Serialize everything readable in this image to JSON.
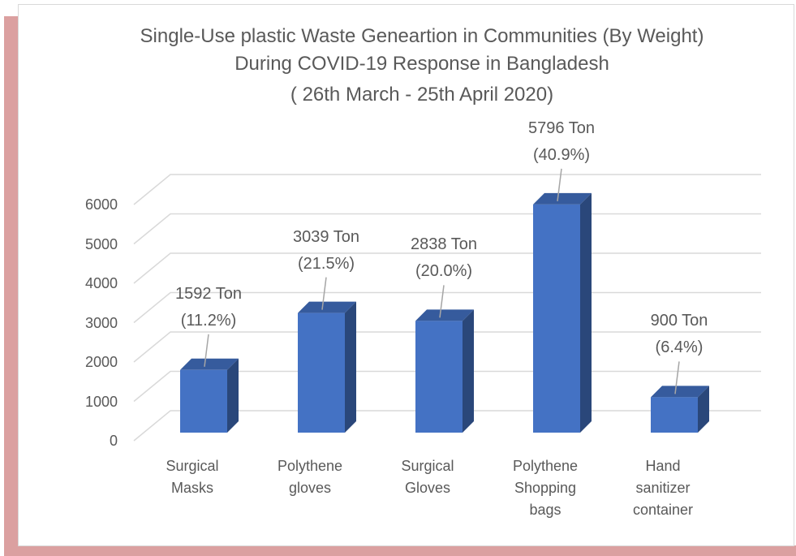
{
  "chart_data": {
    "type": "bar3d",
    "title": "Single-Use plastic Waste Geneartion in Communities (By Weight)  During COVID-19 Response in Bangladesh",
    "subtitle": "( 26th March - 25th April 2020)",
    "categories": [
      "Surgical Masks",
      "Polythene gloves",
      "Surgical Gloves",
      "Polythene Shopping bags",
      "Hand sanitizer container"
    ],
    "values": [
      1592,
      3039,
      2838,
      5796,
      900
    ],
    "value_labels": [
      "1592 Ton (11.2%)",
      "3039 Ton (21.5%)",
      "2838 Ton (20.0%)",
      "5796 Ton (40.9%)",
      "900 Ton (6.4%)"
    ],
    "color": "#4472c4",
    "ylim": [
      0,
      6000
    ],
    "yticks": [
      0,
      1000,
      2000,
      3000,
      4000,
      5000,
      6000
    ],
    "grid": true
  }
}
